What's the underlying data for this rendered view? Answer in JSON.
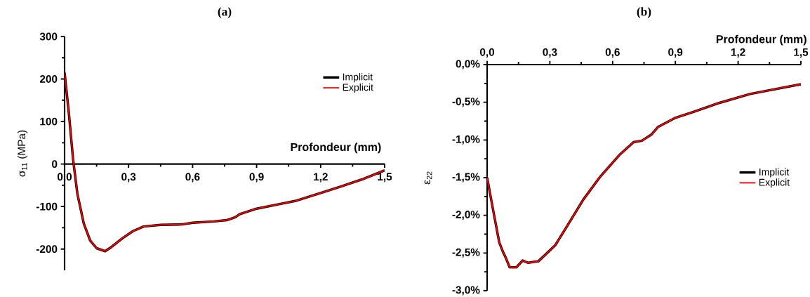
{
  "chart_data": [
    {
      "type": "line",
      "title": "(a)",
      "xlabel": "Profondeur (mm)",
      "ylabel": "σ$_{11}$ (MPa)",
      "legend": "top right",
      "xlim": [
        0,
        1.5
      ],
      "ylim": [
        -250,
        300
      ],
      "xticks": [
        {
          "value": 0,
          "label": "0,0"
        },
        {
          "value": 0.3,
          "label": "0,3"
        },
        {
          "value": 0.6,
          "label": "0,6"
        },
        {
          "value": 0.9,
          "label": "0,9"
        },
        {
          "value": 1.2,
          "label": "1,2"
        },
        {
          "value": 1.5,
          "label": "1,5"
        }
      ],
      "yticks": [
        -200,
        -100,
        0,
        100,
        200,
        300
      ],
      "x": [
        0,
        0.02,
        0.04,
        0.06,
        0.09,
        0.12,
        0.15,
        0.19,
        0.22,
        0.27,
        0.32,
        0.37,
        0.45,
        0.55,
        0.6,
        0.7,
        0.76,
        0.8,
        0.82,
        0.9,
        1.0,
        1.08,
        1.2,
        1.3,
        1.4,
        1.5
      ],
      "series": [
        {
          "name": "Implicit",
          "color": "#000000",
          "values": [
            215,
            120,
            10,
            -70,
            -140,
            -180,
            -198,
            -205,
            -195,
            -175,
            -158,
            -147,
            -143,
            -142,
            -138,
            -135,
            -132,
            -125,
            -118,
            -105,
            -95,
            -87,
            -68,
            -52,
            -35,
            -15
          ]
        },
        {
          "name": "Explicit",
          "color": "#ff0000",
          "values": [
            215,
            120,
            10,
            -70,
            -140,
            -180,
            -198,
            -205,
            -195,
            -175,
            -158,
            -147,
            -143,
            -142,
            -138,
            -135,
            -132,
            -125,
            -118,
            -105,
            -95,
            -87,
            -68,
            -52,
            -35,
            -15
          ]
        }
      ]
    },
    {
      "type": "line",
      "title": "(b)",
      "xlabel": "Profondeur (mm)",
      "ylabel": "ε$_{22}$",
      "legend": "right",
      "xlim": [
        0,
        1.5
      ],
      "ylim": [
        -3,
        0
      ],
      "xticks": [
        {
          "value": 0,
          "label": "0,0"
        },
        {
          "value": 0.3,
          "label": "0,3"
        },
        {
          "value": 0.6,
          "label": "0,6"
        },
        {
          "value": 0.9,
          "label": "0,9"
        },
        {
          "value": 1.2,
          "label": "1,2"
        },
        {
          "value": 1.5,
          "label": "1,5"
        }
      ],
      "yticks": [
        {
          "value": -3,
          "label": "-3,0%"
        },
        {
          "value": -2.5,
          "label": "-2,5%"
        },
        {
          "value": -2,
          "label": "-2,0%"
        },
        {
          "value": -1.5,
          "label": "-1,5%"
        },
        {
          "value": -1,
          "label": "-1,0%"
        },
        {
          "value": -0.5,
          "label": "-0,5%"
        },
        {
          "value": 0,
          "label": "0,0%"
        }
      ],
      "x": [
        0,
        0.03,
        0.058,
        0.075,
        0.09,
        0.108,
        0.14,
        0.17,
        0.195,
        0.245,
        0.325,
        0.394,
        0.46,
        0.54,
        0.636,
        0.7,
        0.74,
        0.785,
        0.816,
        0.897,
        0.984,
        1.108,
        1.257,
        1.5
      ],
      "series": [
        {
          "name": "Implicit",
          "color": "#000000",
          "values": [
            -1.5,
            -1.95,
            -2.36,
            -2.48,
            -2.57,
            -2.69,
            -2.69,
            -2.6,
            -2.63,
            -2.61,
            -2.4,
            -2.09,
            -1.79,
            -1.49,
            -1.19,
            -1.03,
            -1.01,
            -0.93,
            -0.83,
            -0.71,
            -0.63,
            -0.51,
            -0.39,
            -0.26
          ]
        },
        {
          "name": "Explicit",
          "color": "#ff0000",
          "values": [
            -1.5,
            -1.95,
            -2.36,
            -2.48,
            -2.57,
            -2.69,
            -2.69,
            -2.6,
            -2.63,
            -2.61,
            -2.4,
            -2.09,
            -1.79,
            -1.49,
            -1.19,
            -1.03,
            -1.01,
            -0.93,
            -0.83,
            -0.71,
            -0.63,
            -0.51,
            -0.39,
            -0.26
          ]
        }
      ]
    }
  ]
}
